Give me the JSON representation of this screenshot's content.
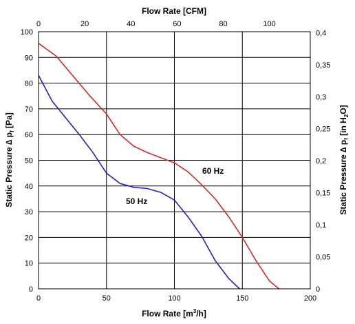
{
  "chart_data": {
    "type": "line",
    "title": "",
    "grid": true,
    "xlabel": {
      "text": "Flow Rate [m",
      "sup": "3",
      "rest": "/h]"
    },
    "x2label": "Flow Rate [CFM]",
    "ylabel": {
      "text": "Static Pressure ∆ p",
      "sub": "f",
      "rest": " [Pa]"
    },
    "y2label": {
      "text": "Static Pressure ∆ p",
      "sub": "f",
      "rest1": " [in H",
      "sub2": "2",
      "rest2": "O]"
    },
    "xlim": [
      0,
      200
    ],
    "ylim": [
      0,
      100
    ],
    "x2lim": [
      0,
      117.7
    ],
    "y2lim": [
      0,
      0.4015
    ],
    "x_ticks": [
      "0",
      "50",
      "100",
      "150",
      "200"
    ],
    "y_ticks": [
      "0",
      "10",
      "20",
      "30",
      "40",
      "50",
      "60",
      "70",
      "80",
      "90",
      "100"
    ],
    "x2_ticks": [
      "0",
      "20",
      "40",
      "60",
      "80",
      "100"
    ],
    "y2_ticks": [
      "0",
      "0,05",
      "0,1",
      "0,15",
      "0,2",
      "0,25",
      "0,3",
      "0,35",
      "0,4"
    ],
    "series": [
      {
        "name": "60 Hz",
        "color": "#d42a2a",
        "points": [
          [
            0,
            95.5
          ],
          [
            13,
            90.5
          ],
          [
            25,
            83
          ],
          [
            37,
            75.5
          ],
          [
            50,
            68
          ],
          [
            60,
            60
          ],
          [
            70,
            55.5
          ],
          [
            80,
            53
          ],
          [
            90,
            51
          ],
          [
            100,
            49
          ],
          [
            110,
            45.5
          ],
          [
            120,
            40.5
          ],
          [
            130,
            35
          ],
          [
            140,
            28
          ],
          [
            150,
            20
          ],
          [
            160,
            11
          ],
          [
            170,
            3
          ],
          [
            177,
            0
          ]
        ]
      },
      {
        "name": "50 Hz",
        "color": "#2222b8",
        "points": [
          [
            0,
            83
          ],
          [
            10,
            73
          ],
          [
            20,
            66.5
          ],
          [
            30,
            60
          ],
          [
            40,
            53
          ],
          [
            50,
            45
          ],
          [
            60,
            41
          ],
          [
            70,
            39.5
          ],
          [
            80,
            39
          ],
          [
            90,
            37.5
          ],
          [
            100,
            34.5
          ],
          [
            110,
            28
          ],
          [
            120,
            20.5
          ],
          [
            130,
            11
          ],
          [
            140,
            4
          ],
          [
            148,
            0
          ]
        ]
      }
    ]
  }
}
